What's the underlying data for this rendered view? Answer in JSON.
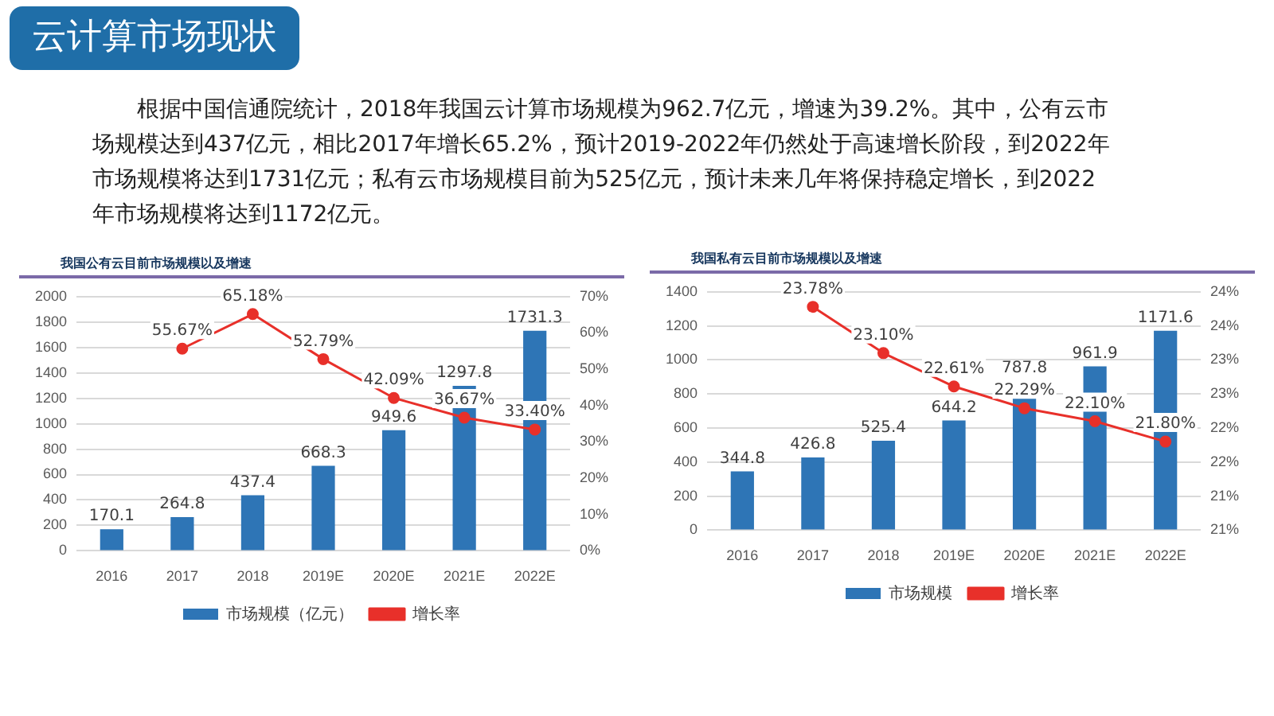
{
  "chart_data": [
    {
      "type": "bar",
      "title": "我国公有云目前市场规模以及增速",
      "annotations": [
        "云计算市场现状",
        "根据中国信通院统计，2018年我国云计算市场规模为962.7亿元，增速为39.2%。其中，公有云市场规模达到437亿元，相比2017年增长65.2%，预计2019-2022年仍然处于高速增长阶段，到2022年市场规模将达到1731亿元；私有云市场规模目前为525亿元，预计未来几年将保持稳定增长，到2022年市场规模将达到1172亿元。"
      ],
      "categories": [
        "2016",
        "2017",
        "2018",
        "2019E",
        "2020E",
        "2021E",
        "2022E"
      ],
      "series": [
        {
          "name": "市场规模（亿元）",
          "color": "#2e75b6",
          "values": [
            170.1,
            264.8,
            437.4,
            668.3,
            949.6,
            1297.8,
            1731.3
          ],
          "value_labels": [
            "170.1",
            "264.8",
            "437.4",
            "668.3",
            "949.6",
            "1297.8",
            "1731.3"
          ]
        },
        {
          "name": "增长率",
          "type": "line",
          "axis": "y2",
          "color": "#e8302a",
          "marker": "circle",
          "values": [
            null,
            55.67,
            65.18,
            52.79,
            42.09,
            36.67,
            33.4
          ],
          "value_labels": [
            null,
            "55.67%",
            "65.18%",
            "52.79%",
            "42.09%",
            "36.67%",
            "33.40%"
          ]
        }
      ],
      "ylim": [
        0,
        2000
      ],
      "yticks": [
        0,
        200,
        400,
        600,
        800,
        1000,
        1200,
        1400,
        1600,
        1800,
        2000
      ],
      "y2lim": [
        0,
        70
      ],
      "y2ticks": [
        {
          "value": 0,
          "label": "0%"
        },
        {
          "value": 10,
          "label": "10%"
        },
        {
          "value": 20,
          "label": "20%"
        },
        {
          "value": 30,
          "label": "30%"
        },
        {
          "value": 40,
          "label": "40%"
        },
        {
          "value": 50,
          "label": "50%"
        },
        {
          "value": 60,
          "label": "60%"
        },
        {
          "value": 70,
          "label": "70%"
        }
      ],
      "grid": "y",
      "legend": "bottom"
    },
    {
      "type": "bar",
      "title": "我国私有云目前市场规模以及增速",
      "categories": [
        "2016",
        "2017",
        "2018",
        "2019E",
        "2020E",
        "2021E",
        "2022E"
      ],
      "series": [
        {
          "name": "市场规模",
          "color": "#2e75b6",
          "values": [
            344.8,
            426.8,
            525.4,
            644.2,
            787.8,
            961.9,
            1171.6
          ],
          "value_labels": [
            "344.8",
            "426.8",
            "525.4",
            "644.2",
            "787.8",
            "961.9",
            "1171.6"
          ]
        },
        {
          "name": "增长率",
          "type": "line",
          "axis": "y2",
          "color": "#e8302a",
          "marker": "circle",
          "values": [
            null,
            23.78,
            23.1,
            22.61,
            22.29,
            22.1,
            21.8
          ],
          "value_labels": [
            null,
            "23.78%",
            "23.10%",
            "22.61%",
            "22.29%",
            "22.10%",
            "21.80%"
          ]
        }
      ],
      "ylim": [
        0,
        1400
      ],
      "yticks": [
        0,
        200,
        400,
        600,
        800,
        1000,
        1200,
        1400
      ],
      "y2lim": [
        20.5,
        24
      ],
      "y2ticks": [
        {
          "value": 20.5,
          "label": "21%"
        },
        {
          "value": 21,
          "label": "21%"
        },
        {
          "value": 21.5,
          "label": "22%"
        },
        {
          "value": 22,
          "label": "22%"
        },
        {
          "value": 22.5,
          "label": "23%"
        },
        {
          "value": 23,
          "label": "23%"
        },
        {
          "value": 23.5,
          "label": "24%"
        },
        {
          "value": 24,
          "label": "24%"
        }
      ],
      "grid": "y",
      "legend": "bottom"
    }
  ]
}
